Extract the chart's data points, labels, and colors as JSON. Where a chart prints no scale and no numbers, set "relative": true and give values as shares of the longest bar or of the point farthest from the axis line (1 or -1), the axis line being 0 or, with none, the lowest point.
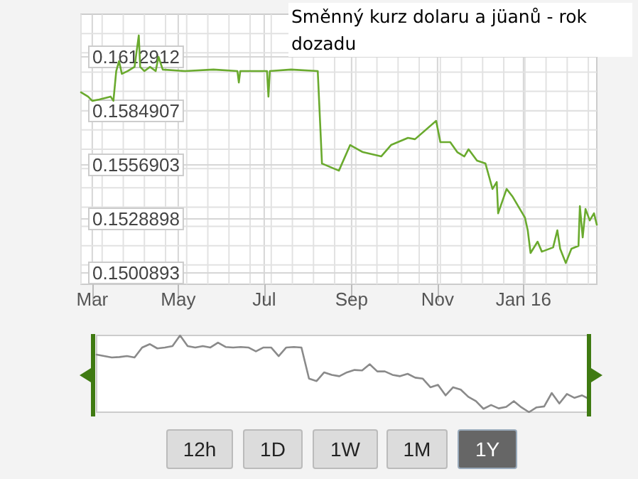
{
  "chart_data": [
    {
      "type": "line",
      "title": "Směnný kurz dolaru a jüanů - rok dozadu",
      "x": [
        "2015-02-21",
        "2015-02-26",
        "2015-03-01",
        "2015-03-06",
        "2015-03-14",
        "2015-03-16",
        "2015-03-18",
        "2015-03-20",
        "2015-03-22",
        "2015-03-26",
        "2015-03-31",
        "2015-04-03",
        "2015-04-04",
        "2015-04-07",
        "2015-04-11",
        "2015-04-15",
        "2015-04-17",
        "2015-04-20",
        "2015-05-06",
        "2015-05-26",
        "2015-06-12",
        "2015-06-13",
        "2015-06-14",
        "2015-07-03",
        "2015-07-04",
        "2015-07-05",
        "2015-07-20",
        "2015-08-08",
        "2015-08-11",
        "2015-08-23",
        "2015-08-31",
        "2015-09-09",
        "2015-09-22",
        "2015-09-29",
        "2015-10-11",
        "2015-10-16",
        "2015-10-31",
        "2015-11-03",
        "2015-11-10",
        "2015-11-15",
        "2015-11-20",
        "2015-11-23",
        "2015-11-29",
        "2015-12-05",
        "2015-12-10",
        "2015-12-13",
        "2015-12-14",
        "2015-12-20",
        "2015-12-24",
        "2016-01-02",
        "2016-01-04",
        "2016-01-06",
        "2016-01-11",
        "2016-01-14",
        "2016-01-22",
        "2016-01-25",
        "2016-01-27",
        "2016-01-31",
        "2016-02-04",
        "2016-02-09",
        "2016-02-10",
        "2016-02-12",
        "2016-02-14",
        "2016-02-17",
        "2016-02-20",
        "2016-02-22"
      ],
      "series": [
        {
          "color": "#6aaa2e",
          "values": [
            0.15945,
            0.15923,
            0.15901,
            0.15908,
            0.15923,
            0.15901,
            0.16055,
            0.16107,
            0.16041,
            0.16055,
            0.16077,
            0.1624,
            0.16077,
            0.16055,
            0.16077,
            0.16055,
            0.16129,
            0.16063,
            0.16055,
            0.16063,
            0.16055,
            0.15996,
            0.16055,
            0.16055,
            0.15923,
            0.16055,
            0.16063,
            0.16055,
            0.15576,
            0.15539,
            0.15672,
            0.15635,
            0.15613,
            0.15672,
            0.15709,
            0.15702,
            0.15797,
            0.15687,
            0.15687,
            0.15635,
            0.15613,
            0.1565,
            0.15591,
            0.15576,
            0.15444,
            0.1548,
            0.15318,
            0.15444,
            0.15407,
            0.15296,
            0.1523,
            0.15112,
            0.15171,
            0.15119,
            0.15141,
            0.1523,
            0.15134,
            0.1506,
            0.15134,
            0.15149,
            0.15355,
            0.15193,
            0.1534,
            0.15281,
            0.15318,
            0.15259
          ]
        }
      ],
      "xlim": [
        "2015-02-21",
        "2016-02-22"
      ],
      "xticks": [
        {
          "value": "2015-03-01",
          "label": "Mar"
        },
        {
          "value": "2015-05-01",
          "label": "May"
        },
        {
          "value": "2015-07-01",
          "label": "Jul"
        },
        {
          "value": "2015-09-01",
          "label": "Sep"
        },
        {
          "value": "2015-11-01",
          "label": "Nov"
        },
        {
          "value": "2016-01-01",
          "label": "Jan 16"
        }
      ],
      "ylim": [
        0.1495,
        0.1635
      ],
      "yticks": [
        0.1500893,
        0.1528898,
        0.1556903,
        0.1584907,
        0.1612912
      ],
      "grid": true,
      "marker": "none",
      "line_style": "solid"
    },
    {
      "type": "line",
      "categories": [
        null,
        null,
        null,
        null,
        null,
        null,
        null,
        null,
        null,
        null,
        null,
        null,
        null,
        null,
        null,
        null,
        null,
        null,
        null,
        null,
        null,
        null,
        null,
        null,
        null,
        null,
        null,
        null,
        null,
        null,
        null,
        null,
        null,
        null,
        null,
        null,
        null,
        null,
        null,
        null,
        null,
        null,
        null,
        null,
        null,
        null,
        null,
        null,
        null,
        null,
        null,
        null,
        null,
        null,
        null,
        null,
        null,
        null,
        null,
        null,
        null,
        null,
        null,
        null,
        null,
        null
      ],
      "series": [
        {
          "color": "#8a8a8a",
          "values": [
            0.75,
            0.731,
            0.713,
            0.719,
            0.731,
            0.713,
            0.843,
            0.887,
            0.831,
            0.843,
            0.862,
            1,
            0.862,
            0.843,
            0.862,
            0.843,
            0.906,
            0.85,
            0.843,
            0.85,
            0.843,
            0.793,
            0.843,
            0.843,
            0.731,
            0.843,
            0.85,
            0.843,
            0.437,
            0.406,
            0.519,
            0.487,
            0.469,
            0.519,
            0.55,
            0.544,
            0.625,
            0.531,
            0.531,
            0.487,
            0.469,
            0.5,
            0.45,
            0.437,
            0.325,
            0.356,
            0.219,
            0.325,
            0.294,
            0.2,
            0.144,
            0.044,
            0.094,
            0.05,
            0.069,
            0.144,
            0.063,
            0,
            0.063,
            0.075,
            0.25,
            0.113,
            0.237,
            0.187,
            0.219,
            0.169
          ]
        }
      ],
      "relative": true,
      "marker": "none",
      "line_style": "solid"
    },
    {
      "type": "other",
      "annotations": [
        "12h",
        "1D",
        "1W",
        "1M",
        "1Y"
      ]
    }
  ]
}
